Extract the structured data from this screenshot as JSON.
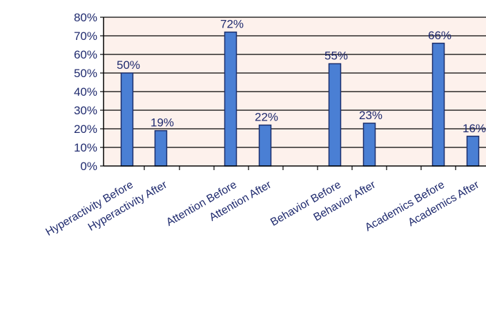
{
  "chart_data": {
    "type": "bar",
    "categories": [
      "Hyperactivity Before",
      "Hyperactivity After",
      "Attention Before",
      "Attention After",
      "Behavior Before",
      "Behavior  After",
      "Academics Before",
      "Academics  After"
    ],
    "values": [
      50,
      19,
      72,
      22,
      55,
      23,
      66,
      16
    ],
    "data_labels": [
      "50%",
      "19%",
      "72%",
      "22%",
      "55%",
      "23%",
      "66%",
      "16%"
    ],
    "ylim": [
      0,
      80
    ],
    "yticks": [
      "0%",
      "10%",
      "20%",
      "30%",
      "40%",
      "50%",
      "60%",
      "70%",
      "80%"
    ],
    "grid": true,
    "colors": {
      "bar": "#4a7fd4",
      "bar_edge": "#1c2f6b",
      "plot_background": "#fdf1ec",
      "text": "#1f2a6e"
    }
  }
}
